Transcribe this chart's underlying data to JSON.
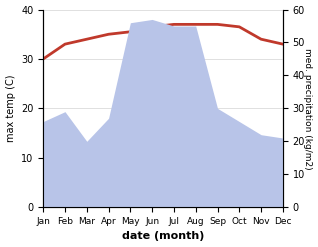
{
  "months": [
    "Jan",
    "Feb",
    "Mar",
    "Apr",
    "May",
    "Jun",
    "Jul",
    "Aug",
    "Sep",
    "Oct",
    "Nov",
    "Dec"
  ],
  "temperature": [
    30,
    33,
    34,
    35,
    35.5,
    36.5,
    37,
    37,
    37,
    36.5,
    34,
    33
  ],
  "precipitation": [
    26,
    29,
    20,
    27,
    56,
    57,
    55,
    55,
    30,
    26,
    22,
    21
  ],
  "temp_color": "#c0392b",
  "precip_color_fill": "#b8c4e8",
  "title": "",
  "xlabel": "date (month)",
  "ylabel_left": "max temp (C)",
  "ylabel_right": "med. precipitation (kg/m2)",
  "ylim_left": [
    0,
    40
  ],
  "ylim_right": [
    0,
    60
  ],
  "yticks_left": [
    0,
    10,
    20,
    30,
    40
  ],
  "yticks_right": [
    0,
    10,
    20,
    30,
    40,
    50,
    60
  ],
  "background_color": "#ffffff",
  "line_width": 2.0
}
